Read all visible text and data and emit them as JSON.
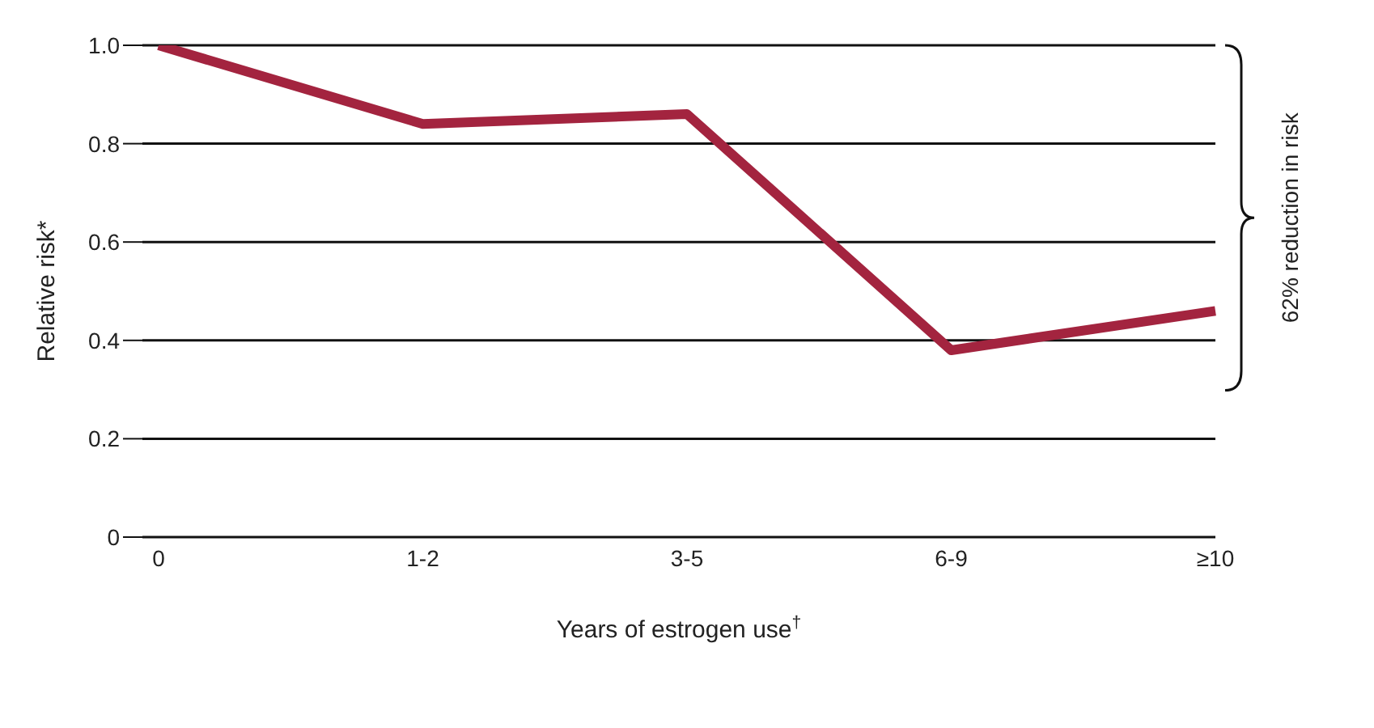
{
  "chart_data": {
    "type": "line",
    "xlabel": "Years of estrogen use$^{†}$",
    "ylabel": "Relative risk*",
    "categories": [
      "0",
      "1-2",
      "3-5",
      "6-9",
      "≥10"
    ],
    "series": [
      {
        "color": "#a3243f",
        "values": [
          1.0,
          0.84,
          0.86,
          0.38,
          0.46
        ]
      }
    ],
    "ylim": [
      0,
      1.0
    ],
    "yticks": [
      0,
      0.2,
      0.4,
      0.6,
      0.8,
      {
        "value": 1.0,
        "label": "1.0"
      }
    ],
    "grid": "y",
    "marker": "none",
    "line_style": "solid",
    "annotations": [
      "62% reduction in risk"
    ]
  }
}
